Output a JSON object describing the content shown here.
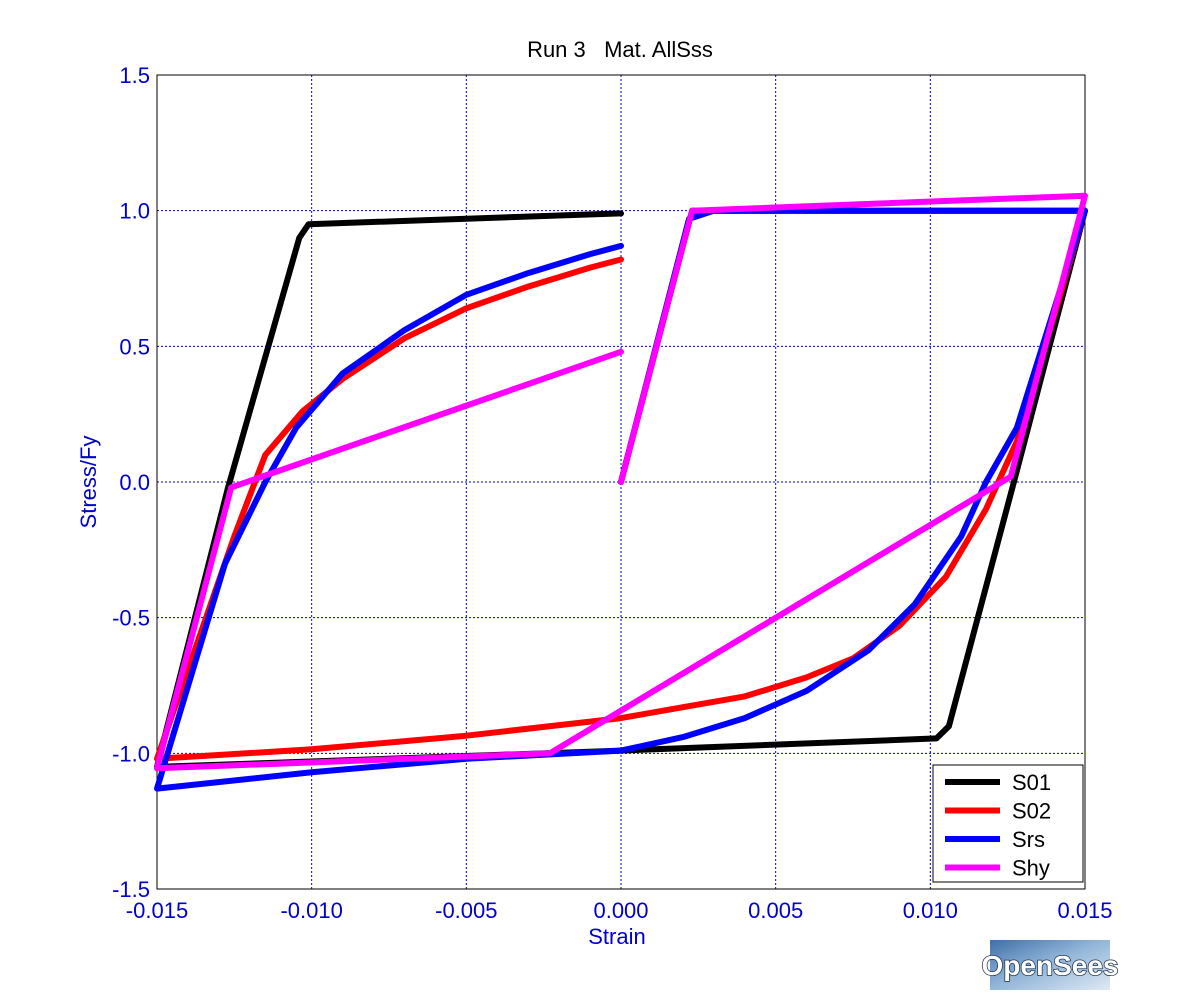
{
  "logo": {
    "text": "OpenSees"
  },
  "chart_data": {
    "type": "line",
    "title": "Run 3   Mat. AllSss",
    "xlabel": "Strain",
    "ylabel": "Stress/Fy",
    "xlim": [
      -0.015,
      0.015
    ],
    "ylim": [
      -1.5,
      1.5
    ],
    "xticks": [
      -0.015,
      -0.01,
      -0.005,
      0.0,
      0.005,
      0.01,
      0.015
    ],
    "xtick_labels": [
      "-0.015",
      "-0.010",
      "-0.005",
      "0.000",
      "0.005",
      "0.010",
      "0.015"
    ],
    "yticks": [
      -1.5,
      -1.0,
      -0.5,
      0.0,
      0.5,
      1.0,
      1.5
    ],
    "ytick_labels": [
      "-1.5",
      "-1.0",
      "-0.5",
      "0.0",
      "0.5",
      "1.0",
      "1.5"
    ],
    "grid": true,
    "legend_position": "bottom-right",
    "series": [
      {
        "name": "S01",
        "color": "#000000",
        "points": [
          [
            0.0,
            0.0
          ],
          [
            0.0023,
            1.0
          ],
          [
            0.015,
            1.0
          ],
          [
            0.0127,
            0.0
          ],
          [
            0.0106,
            -0.9
          ],
          [
            0.0102,
            -0.945
          ],
          [
            0.0,
            -0.99
          ],
          [
            -0.015,
            -1.05
          ],
          [
            -0.0127,
            -0.02
          ],
          [
            -0.0104,
            0.9
          ],
          [
            -0.0101,
            0.95
          ],
          [
            0.0,
            0.99
          ]
        ]
      },
      {
        "name": "S02",
        "color": "#ff0000",
        "points": [
          [
            0.0,
            0.0
          ],
          [
            0.0022,
            0.97
          ],
          [
            0.003,
            1.0
          ],
          [
            0.015,
            1.0
          ],
          [
            0.0128,
            0.15
          ],
          [
            0.0118,
            -0.1
          ],
          [
            0.0105,
            -0.35
          ],
          [
            0.009,
            -0.53
          ],
          [
            0.0075,
            -0.65
          ],
          [
            0.006,
            -0.72
          ],
          [
            0.004,
            -0.79
          ],
          [
            0.002,
            -0.83
          ],
          [
            0.0,
            -0.87
          ],
          [
            -0.005,
            -0.935
          ],
          [
            -0.01,
            -0.985
          ],
          [
            -0.015,
            -1.02
          ],
          [
            -0.0125,
            -0.2
          ],
          [
            -0.0115,
            0.1
          ],
          [
            -0.0103,
            0.26
          ],
          [
            -0.009,
            0.38
          ],
          [
            -0.007,
            0.53
          ],
          [
            -0.005,
            0.64
          ],
          [
            -0.003,
            0.72
          ],
          [
            -0.001,
            0.79
          ],
          [
            0.0,
            0.82
          ]
        ]
      },
      {
        "name": "Srs",
        "color": "#0000ff",
        "points": [
          [
            0.0,
            0.0
          ],
          [
            0.0022,
            0.97
          ],
          [
            0.003,
            1.0
          ],
          [
            0.015,
            1.0
          ],
          [
            0.0128,
            0.2
          ],
          [
            0.0118,
            0.0
          ],
          [
            0.011,
            -0.2
          ],
          [
            0.0095,
            -0.45
          ],
          [
            0.008,
            -0.62
          ],
          [
            0.006,
            -0.77
          ],
          [
            0.004,
            -0.87
          ],
          [
            0.002,
            -0.94
          ],
          [
            0.0,
            -0.99
          ],
          [
            -0.005,
            -1.02
          ],
          [
            -0.01,
            -1.07
          ],
          [
            -0.015,
            -1.13
          ],
          [
            -0.0128,
            -0.3
          ],
          [
            -0.0115,
            0.0
          ],
          [
            -0.0105,
            0.2
          ],
          [
            -0.009,
            0.4
          ],
          [
            -0.007,
            0.56
          ],
          [
            -0.005,
            0.69
          ],
          [
            -0.003,
            0.77
          ],
          [
            -0.001,
            0.84
          ],
          [
            0.0,
            0.87
          ]
        ]
      },
      {
        "name": "Shy",
        "color": "#ff00ff",
        "points": [
          [
            0.0,
            0.0
          ],
          [
            0.0023,
            1.0
          ],
          [
            0.015,
            1.055
          ],
          [
            0.0126,
            0.02
          ],
          [
            -0.0023,
            -1.0
          ],
          [
            -0.015,
            -1.055
          ],
          [
            -0.0126,
            -0.02
          ],
          [
            0.0,
            0.48
          ]
        ]
      }
    ]
  }
}
